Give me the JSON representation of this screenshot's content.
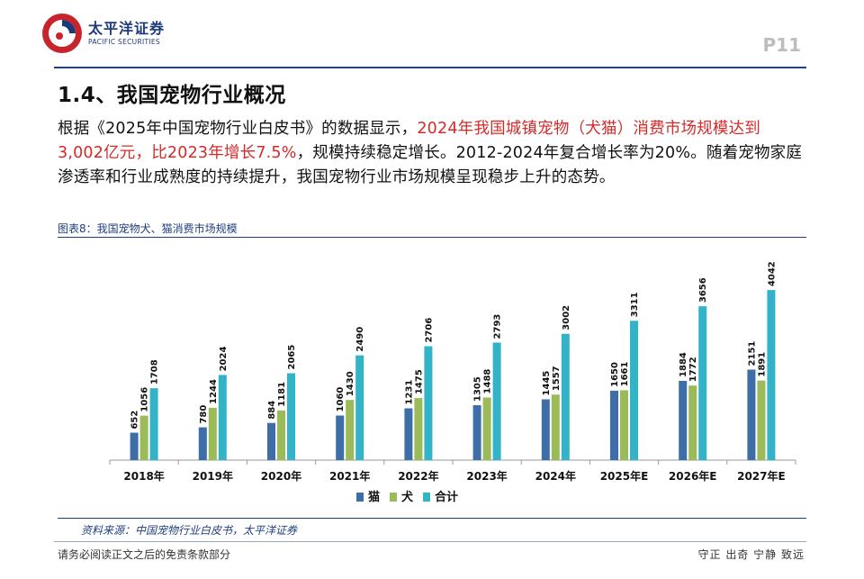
{
  "header": {
    "logo_cn": "太平洋证券",
    "logo_en": "PACIFIC SECURITIES",
    "page_label": "P11"
  },
  "section": {
    "title": "1.4、我国宠物行业概况"
  },
  "intro": {
    "part1": "根据《2025年中国宠物行业白皮书》的数据显示，",
    "highlight": "2024年我国城镇宠物（犬猫）消费市场规模达到3,002亿元，比2023年增长7.5%",
    "part2": "，规模持续稳定增长。2012-2024年复合增长率为20%。随着宠物家庭渗透率和行业成熟度的持续提升，我国宠物行业市场规模呈现稳步上升的态势。"
  },
  "chart_caption": "图表8：我国宠物犬、猫消费市场规模",
  "chart_data": {
    "type": "bar",
    "title": "我国宠物犬、猫消费市场规模",
    "categories": [
      "2018年",
      "2019年",
      "2020年",
      "2021年",
      "2022年",
      "2023年",
      "2024年",
      "2025年E",
      "2026年E",
      "2027年E"
    ],
    "series": [
      {
        "name": "猫",
        "color": "#3e6ea8",
        "values": [
          652,
          780,
          884,
          1060,
          1231,
          1305,
          1445,
          1650,
          1884,
          2151
        ]
      },
      {
        "name": "犬",
        "color": "#9bbb59",
        "values": [
          1056,
          1244,
          1181,
          1430,
          1475,
          1488,
          1557,
          1661,
          1772,
          1891
        ]
      },
      {
        "name": "合计",
        "color": "#33b3c8",
        "values": [
          1708,
          2024,
          2065,
          2490,
          2706,
          2793,
          3002,
          3311,
          3656,
          4042
        ]
      }
    ],
    "ylim": [
      0,
      4600
    ],
    "xlabel": "",
    "ylabel": "",
    "legend": "bottom-center",
    "grid": false
  },
  "source": "资料来源：中国宠物行业白皮书，太平洋证券",
  "footer": {
    "left": "请务必阅读正文之后的免责条款部分",
    "right": "守正 出奇 宁静 致远"
  }
}
